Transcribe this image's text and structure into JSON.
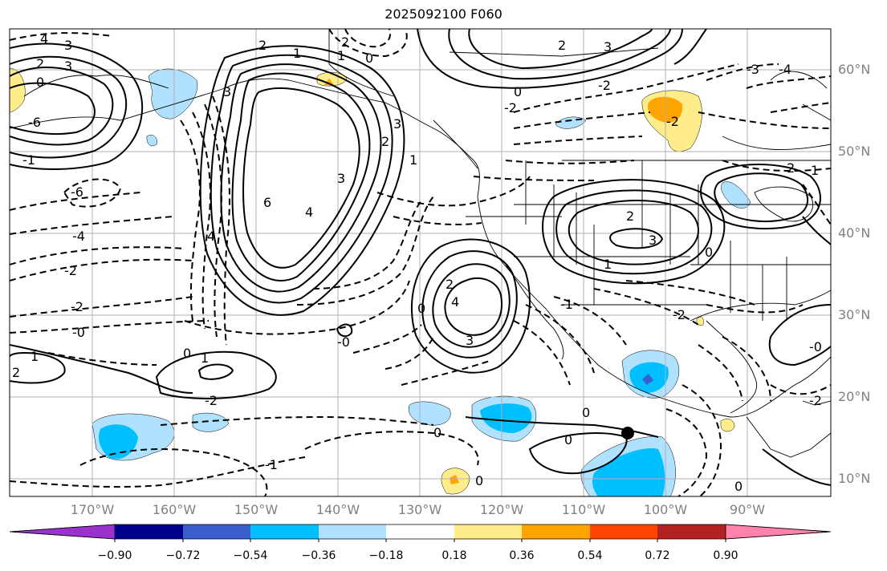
{
  "title": "2025092100 F060",
  "lat_labels": [
    "60°N",
    "50°N",
    "40°N",
    "30°N",
    "20°N",
    "10°N"
  ],
  "lon_labels": [
    "170°W",
    "160°W",
    "150°W",
    "140°W",
    "130°W",
    "120°W",
    "110°W",
    "100°W",
    "90°W"
  ],
  "contour_labels": [
    "4",
    "3",
    "2",
    "1",
    "0",
    "0",
    "2",
    "3",
    "-6",
    "-6",
    "1",
    "2",
    "3",
    "4",
    "6",
    "3",
    "2",
    "4",
    "2",
    "3",
    "-4",
    "-2",
    "-2",
    "-0",
    "-1",
    "2",
    "1",
    "0",
    "1",
    "4",
    "3",
    "0",
    "1",
    "0",
    "2",
    "3",
    "0",
    "-2",
    "-2",
    "0",
    "0",
    "-2",
    "2",
    "1",
    "-3",
    "-4",
    "1",
    "3",
    "0",
    "0",
    "-2",
    "-0",
    "-0",
    "-2",
    "-1",
    "0",
    "-1",
    "2",
    "-2"
  ],
  "colorbar": {
    "ticks": [
      "−0.90",
      "−0.72",
      "−0.54",
      "−0.36",
      "−0.18",
      "0.18",
      "0.36",
      "0.54",
      "0.72",
      "0.90"
    ],
    "colors": [
      "#9a32cd",
      "#00008b",
      "#3a5fcd",
      "#00bfff",
      "#b0e2ff",
      "#ffffff",
      "#ffec8b",
      "#ffa500",
      "#ff4500",
      "#b22222",
      "#ff82ab"
    ]
  }
}
